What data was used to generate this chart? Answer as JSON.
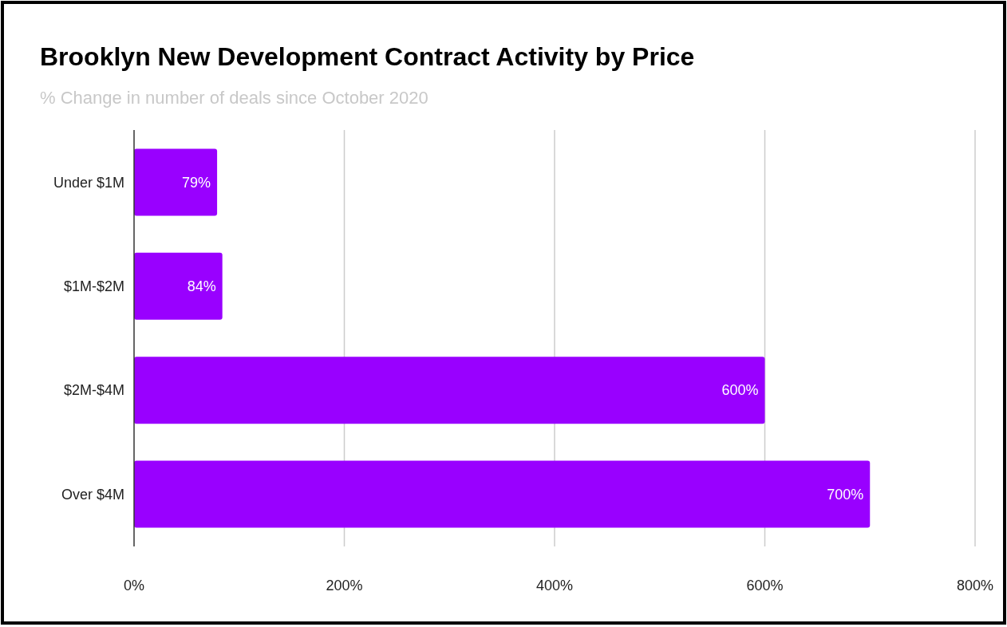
{
  "chart_data": {
    "type": "bar",
    "orientation": "horizontal",
    "title": "Brooklyn New Development Contract Activity by Price",
    "subtitle": "% Change in number of deals since October 2020",
    "categories": [
      "Under $1M",
      "$1M-$2M",
      "$2M-$4M",
      "Over $4M"
    ],
    "values": [
      79,
      84,
      600,
      700
    ],
    "color": "#9900ff",
    "value_labels": [
      "79%",
      "84%",
      "600%",
      "700%"
    ],
    "xlim": [
      0,
      800
    ],
    "xticks": [
      {
        "value": 0,
        "label": "0%"
      },
      {
        "value": 200,
        "label": "200%"
      },
      {
        "value": 400,
        "label": "400%"
      },
      {
        "value": 600,
        "label": "600%"
      },
      {
        "value": 800,
        "label": "800%"
      }
    ],
    "grid": "x"
  }
}
